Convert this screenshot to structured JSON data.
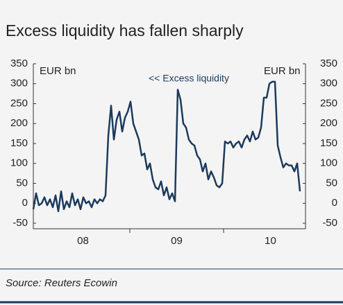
{
  "chart_data": {
    "type": "line",
    "title": "Excess liquidity has fallen sharply",
    "unit_left": "EUR bn",
    "unit_right": "EUR bn",
    "series_label": "<< Excess liquidity",
    "source": "Source: Reuters Ecowin",
    "xticks": [
      "08",
      "09",
      "10"
    ],
    "color": "#1b3a5c",
    "ylim": [
      -50,
      350
    ],
    "yticks": [
      -50,
      0,
      50,
      100,
      150,
      200,
      250,
      300,
      350
    ],
    "values": [
      -15,
      25,
      -5,
      0,
      15,
      -5,
      10,
      -10,
      20,
      -20,
      30,
      -15,
      5,
      -10,
      25,
      -5,
      10,
      -15,
      15,
      0,
      5,
      -10,
      10,
      0,
      10,
      5,
      20,
      170,
      245,
      160,
      210,
      230,
      180,
      215,
      230,
      255,
      200,
      180,
      160,
      120,
      125,
      85,
      100,
      60,
      40,
      35,
      55,
      20,
      40,
      10,
      25,
      5,
      285,
      260,
      200,
      190,
      160,
      150,
      145,
      120,
      110,
      80,
      100,
      60,
      80,
      65,
      45,
      40,
      50,
      155,
      150,
      155,
      140,
      150,
      155,
      140,
      160,
      170,
      155,
      180,
      160,
      165,
      190,
      265,
      265,
      300,
      305,
      305,
      145,
      115,
      90,
      100,
      95,
      95,
      80,
      100,
      30
    ]
  }
}
